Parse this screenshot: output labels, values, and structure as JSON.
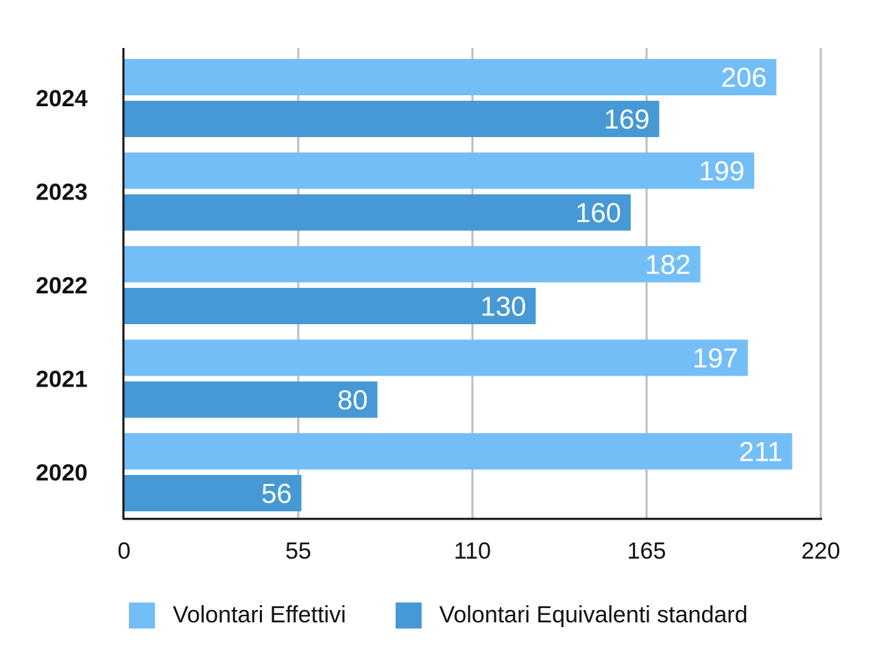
{
  "chart_data": {
    "type": "bar",
    "orientation": "horizontal",
    "categories": [
      "2024",
      "2023",
      "2022",
      "2021",
      "2020"
    ],
    "series": [
      {
        "name": "Volontari Effettivi",
        "color": "#74BEF7",
        "values": [
          206,
          199,
          182,
          197,
          211
        ]
      },
      {
        "name": "Volontari Equivalenti standard",
        "color": "#4699D4",
        "values": [
          169,
          160,
          130,
          80,
          56
        ]
      }
    ],
    "xlim": [
      0,
      220
    ],
    "xticks": [
      "0",
      "55",
      "110",
      "165",
      "220"
    ],
    "grid": true,
    "legend_position": "bottom",
    "data_labels": true,
    "title": "",
    "xlabel": "",
    "ylabel": ""
  }
}
